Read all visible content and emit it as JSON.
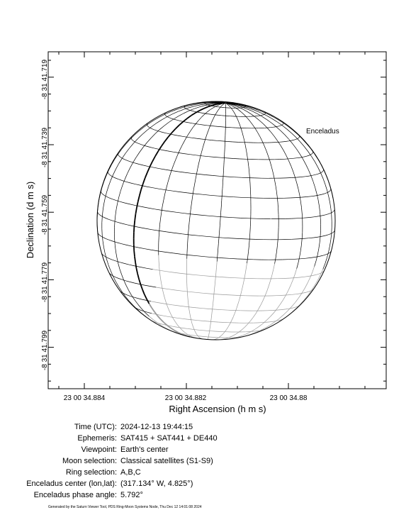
{
  "plot": {
    "x_axis_label": "Right Ascension (h m s)",
    "y_axis_label": "Declination (d m s)",
    "x_tick_labels": [
      "23 00 34.884",
      "23 00 34.882",
      "23 00 34.88"
    ],
    "y_tick_labels": [
      "-8 31 41.719",
      "-8 31 41.739",
      "-8 31 41.759",
      "-8 31 41.779",
      "-8 31 41.799"
    ],
    "moon_label": "Enceladus"
  },
  "info": {
    "rows": [
      [
        "Time (UTC):",
        "2024-12-13 19:44:15"
      ],
      [
        "Ephemeris:",
        "SAT415 + SAT441 + DE440"
      ],
      [
        "Viewpoint:",
        "Earth's center"
      ],
      [
        "Moon selection:",
        "Classical satellites (S1-S9)"
      ],
      [
        "Ring selection:",
        "A,B,C"
      ],
      [
        "Enceladus center (lon,lat):",
        "(317.134° W,  4.825°)"
      ],
      [
        "Enceladus phase angle:",
        "5.792°"
      ]
    ]
  },
  "footer": "Generated by the Saturn Viewer Tool, PDS Ring-Moon Systems Node, Thu Dec 12 14:01:08 2024"
}
